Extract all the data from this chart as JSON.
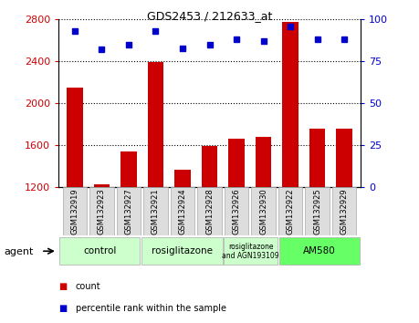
{
  "title": "GDS2453 / 212633_at",
  "samples": [
    "GSM132919",
    "GSM132923",
    "GSM132927",
    "GSM132921",
    "GSM132924",
    "GSM132928",
    "GSM132926",
    "GSM132930",
    "GSM132922",
    "GSM132925",
    "GSM132929"
  ],
  "counts": [
    2150,
    1230,
    1540,
    2390,
    1370,
    1590,
    1660,
    1680,
    2780,
    1760,
    1760
  ],
  "percentiles": [
    93,
    82,
    85,
    93,
    83,
    85,
    88,
    87,
    96,
    88,
    88
  ],
  "ylim_left": [
    1200,
    2800
  ],
  "ylim_right": [
    0,
    100
  ],
  "yticks_left": [
    1200,
    1600,
    2000,
    2400,
    2800
  ],
  "yticks_right": [
    0,
    25,
    50,
    75,
    100
  ],
  "bar_color": "#cc0000",
  "dot_color": "#0000cc",
  "groups": [
    {
      "label": "control",
      "start": 0,
      "end": 3,
      "color": "#ccffcc"
    },
    {
      "label": "rosiglitazone",
      "start": 3,
      "end": 6,
      "color": "#ccffcc"
    },
    {
      "label": "rosiglitazone\nand AGN193109",
      "start": 6,
      "end": 8,
      "color": "#ccffcc"
    },
    {
      "label": "AM580",
      "start": 8,
      "end": 11,
      "color": "#66ff66"
    }
  ],
  "background_color": "#ffffff",
  "plot_bg_color": "#ffffff"
}
